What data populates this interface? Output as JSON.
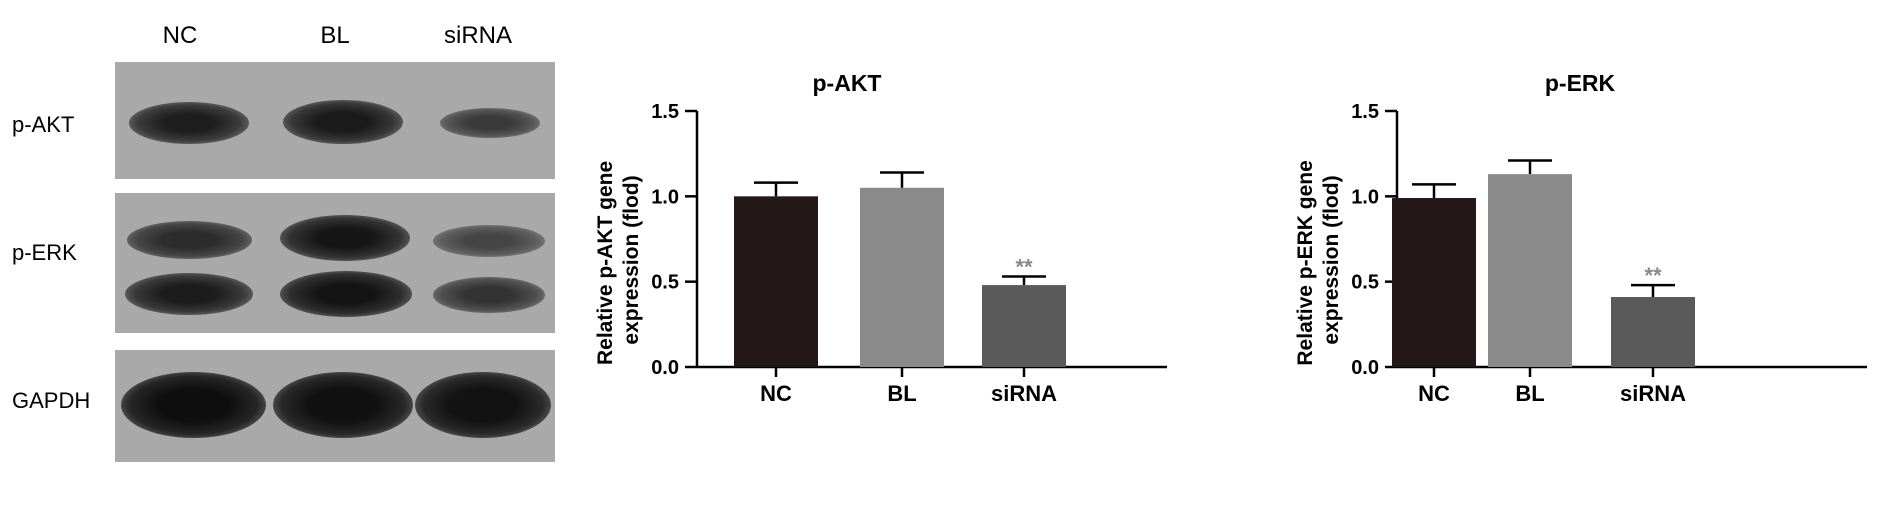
{
  "blot": {
    "lanes": [
      "NC",
      "BL",
      "siRNA"
    ],
    "rows": [
      {
        "label": "p-AKT"
      },
      {
        "label": "p-ERK"
      },
      {
        "label": "GAPDH"
      }
    ]
  },
  "chart_data": [
    {
      "type": "bar",
      "title": "p-AKT",
      "categories": [
        "NC",
        "BL",
        "siRNA"
      ],
      "values": [
        1.0,
        1.05,
        0.48
      ],
      "errors": [
        0.08,
        0.09,
        0.05
      ],
      "annotations": [
        "",
        "",
        "**"
      ],
      "xlabel": "",
      "ylabel": "Relative p-AKT gene expression (flod)",
      "ylim": [
        0,
        1.5
      ],
      "yticks": [
        "0.0",
        "0.5",
        "1.0",
        "1.5"
      ],
      "colors": [
        "#231717",
        "#8a8a8a",
        "#5a5a5a"
      ],
      "grid": false,
      "legend": "none"
    },
    {
      "type": "bar",
      "title": "p-ERK",
      "categories": [
        "NC",
        "BL",
        "siRNA"
      ],
      "values": [
        0.99,
        1.13,
        0.41
      ],
      "errors": [
        0.08,
        0.08,
        0.07
      ],
      "annotations": [
        "",
        "",
        "**"
      ],
      "xlabel": "",
      "ylabel": "Relative p-ERK gene expression (flod)",
      "ylim": [
        0,
        1.5
      ],
      "yticks": [
        "0.0",
        "0.5",
        "1.0",
        "1.5"
      ],
      "colors": [
        "#231717",
        "#8a8a8a",
        "#5a5a5a"
      ],
      "grid": false,
      "legend": "none"
    }
  ]
}
